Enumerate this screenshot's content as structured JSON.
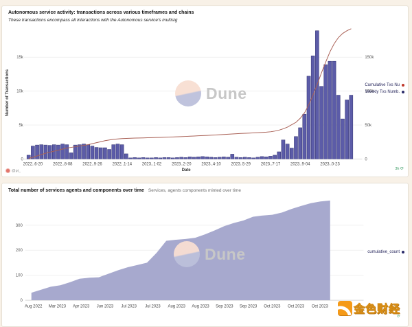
{
  "dune_watermark": {
    "wordmark": "Dune"
  },
  "gold_watermark": {
    "text": "金色财经"
  },
  "top_chart": {
    "title": "Autonomous service activity: transactions across various timeframes and chains",
    "subtitle": "These transactions encompass all interactions with the Autonomous service's multisig",
    "author": "@pi_",
    "refresh_age": "3h",
    "refresh_icon": "⟳",
    "legend": [
      {
        "label": "Cumulative Txs Nu",
        "color": "#c0392b"
      },
      {
        "label": "Weekly Txs Numb.",
        "color": "#2c2c6a"
      }
    ]
  },
  "bottom_chart": {
    "title": "Total number of services agents and components over time",
    "subtitle": "Services, agents components minted over time",
    "legend": [
      {
        "label": "cumulative_count",
        "color": "#2c2c6a"
      }
    ]
  },
  "chart_data": [
    {
      "type": "bar",
      "title": "Autonomous service activity: transactions across various timeframes and chains",
      "subtitle": "These transactions encompass all interactions with the Autonomous service's multisig",
      "xlabel": "Date",
      "ylabel": "Number of Transactions",
      "grid": true,
      "legend_position": "right",
      "x_tick_labels": [
        "2022..6-20",
        "2022..8-08",
        "2022..9-26",
        "2022..1-14",
        "2023..1-02",
        "2023..2-20",
        "2023..4-10",
        "2023..5-29",
        "2023..7-17",
        "2023..9-04",
        "2023..0-23"
      ],
      "left_axis": {
        "label": "Number of Transactions",
        "tick_values": [
          0,
          5000,
          10000,
          15000
        ],
        "tick_labels": [
          "0",
          "5k",
          "10k",
          "15k"
        ],
        "max": 19600
      },
      "right_axis": {
        "tick_values": [
          0,
          50000,
          100000,
          150000
        ],
        "tick_labels": [
          "0",
          "50k",
          "100k",
          "150k"
        ],
        "max": 196000
      },
      "series": [
        {
          "name": "Weekly Txs Numb.",
          "type": "bar",
          "axis": "left",
          "color": "#5c5ca8",
          "border_color": "#2e2e6e",
          "values": [
            550,
            1900,
            2050,
            2100,
            2050,
            2000,
            2100,
            2050,
            2200,
            2100,
            900,
            2050,
            2100,
            2200,
            2100,
            1900,
            1700,
            1650,
            1650,
            1400,
            2100,
            2200,
            2100,
            750,
            150,
            200,
            150,
            200,
            150,
            150,
            200,
            150,
            200,
            200,
            150,
            200,
            250,
            200,
            300,
            250,
            300,
            350,
            300,
            250,
            200,
            250,
            300,
            250,
            700,
            250,
            200,
            250,
            200,
            150,
            250,
            350,
            300,
            400,
            550,
            1050,
            2800,
            2200,
            1600,
            3300,
            4600,
            6600,
            12200,
            15200,
            18900,
            10700,
            13900,
            14400,
            14400,
            9400,
            5900,
            8700,
            9400
          ]
        },
        {
          "name": "Cumulative Txs Nu",
          "type": "line",
          "axis": "right",
          "color": "#a96055",
          "values": [
            600,
            2500,
            4500,
            6500,
            8500,
            10000,
            11500,
            13000,
            14500,
            16000,
            17000,
            18000,
            19000,
            20000,
            21000,
            22500,
            24000,
            25500,
            27000,
            28000,
            29000,
            29500,
            30000,
            30300,
            30500,
            30700,
            30900,
            31000,
            31200,
            31400,
            31600,
            31800,
            32000,
            32200,
            32400,
            32600,
            32900,
            33200,
            33500,
            33800,
            34100,
            34400,
            34700,
            35000,
            35300,
            35600,
            36000,
            36400,
            36800,
            37200,
            37500,
            37800,
            38100,
            38400,
            38700,
            39000,
            39400,
            40000,
            41000,
            42500,
            44500,
            47000,
            50500,
            54000,
            60000,
            68000,
            80000,
            94000,
            110000,
            127000,
            143000,
            158000,
            170000,
            179000,
            185000,
            189000,
            192000
          ]
        }
      ]
    },
    {
      "type": "area",
      "title": "Total number of services agents and components over time",
      "subtitle": "Services, agents components minted over time",
      "xlabel": "",
      "ylabel": "",
      "grid": true,
      "legend_position": "right",
      "x_tick_labels": [
        "Aug 2022",
        "Mar 2023",
        "Apr 2023",
        "Jun 2023",
        "Jul 2023",
        "Jul 2023",
        "Aug 2023",
        "Aug 2023",
        "Sep 2023",
        "Sep 2023",
        "Oct 2023",
        "Oct 2023",
        "Oct 2023"
      ],
      "y_tick_values": [
        0,
        100,
        200,
        300
      ],
      "y_tick_labels": [
        "0",
        "100",
        "200",
        "300"
      ],
      "ylim": [
        0,
        400
      ],
      "series": [
        {
          "name": "cumulative_count",
          "color": "#a7a9ce",
          "values": [
            30,
            42,
            54,
            60,
            72,
            86,
            90,
            92,
            106,
            120,
            132,
            141,
            150,
            190,
            238,
            242,
            245,
            250,
            263,
            279,
            296,
            309,
            319,
            334,
            339,
            342,
            351,
            365,
            377,
            388,
            395,
            399
          ]
        }
      ]
    }
  ]
}
